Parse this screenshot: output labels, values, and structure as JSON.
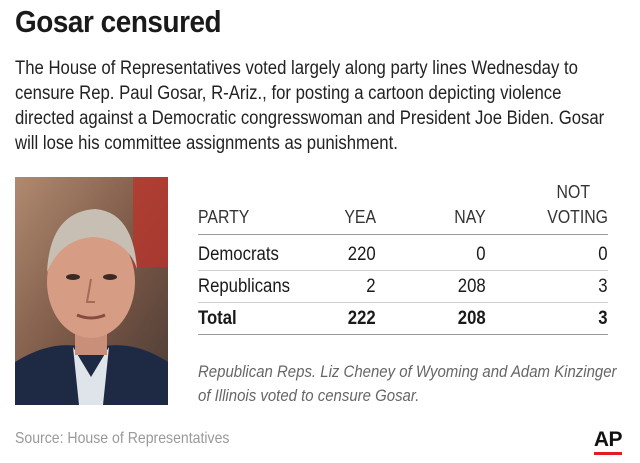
{
  "header": {
    "title": "Gosar censured",
    "intro": "The House of Representatives voted largely along party lines Wednesday to censure Rep. Paul Gosar, R-Ariz., for posting a cartoon depicting violence directed against a Democratic congresswoman and President Joe Biden. Gosar will lose his committee assignments as punishment."
  },
  "table": {
    "headers": {
      "party": "PARTY",
      "yea": "YEA",
      "nay": "NAY",
      "not_voting_1": "NOT",
      "not_voting_2": "VOTING"
    },
    "rows": [
      {
        "party": "Democrats",
        "yea": "220",
        "nay": "0",
        "not_voting": "0"
      },
      {
        "party": "Republicans",
        "yea": "2",
        "nay": "208",
        "not_voting": "3"
      }
    ],
    "total": {
      "party": "Total",
      "yea": "222",
      "nay": "208",
      "not_voting": "3"
    }
  },
  "caption": "Republican Reps. Liz Cheney of Wyoming and Adam Kinzinger of Illinois voted to censure Gosar.",
  "footer": {
    "source": "Source: House of Representatives",
    "logo": "AP",
    "accent_color": "#e31b23"
  }
}
